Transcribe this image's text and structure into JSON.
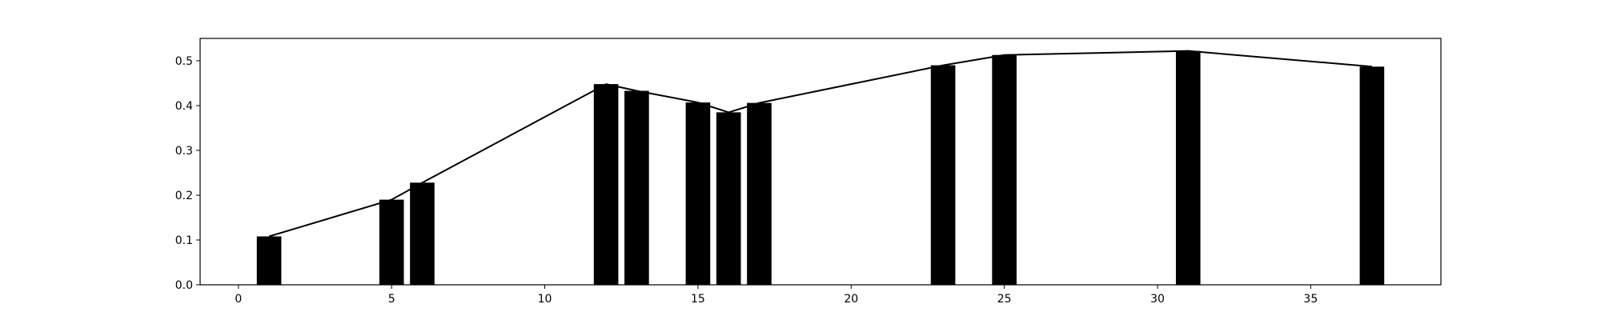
{
  "chart_data": {
    "type": "bar",
    "title": "",
    "xlabel": "",
    "ylabel": "",
    "xlim": [
      -1.25,
      39.25
    ],
    "ylim": [
      0,
      0.55
    ],
    "grid": false,
    "legend": "none",
    "x_ticks": [
      "0",
      "5",
      "10",
      "15",
      "20",
      "25",
      "30",
      "35"
    ],
    "y_ticks": [
      "0.0",
      "0.1",
      "0.2",
      "0.3",
      "0.4",
      "0.5"
    ],
    "x": [
      1,
      5,
      6,
      12,
      13,
      15,
      16,
      17,
      23,
      25,
      31,
      37
    ],
    "bar_values": [
      0.108,
      0.19,
      0.228,
      0.448,
      0.433,
      0.407,
      0.385,
      0.406,
      0.49,
      0.513,
      0.522,
      0.487
    ],
    "line_values": [
      0.108,
      0.19,
      0.228,
      0.448,
      0.433,
      0.407,
      0.385,
      0.406,
      0.49,
      0.513,
      0.522,
      0.487
    ],
    "bar_width": 0.8,
    "colors": {
      "bar": "#000000",
      "line": "#000000",
      "axes": "#000000",
      "background": "#ffffff"
    }
  }
}
